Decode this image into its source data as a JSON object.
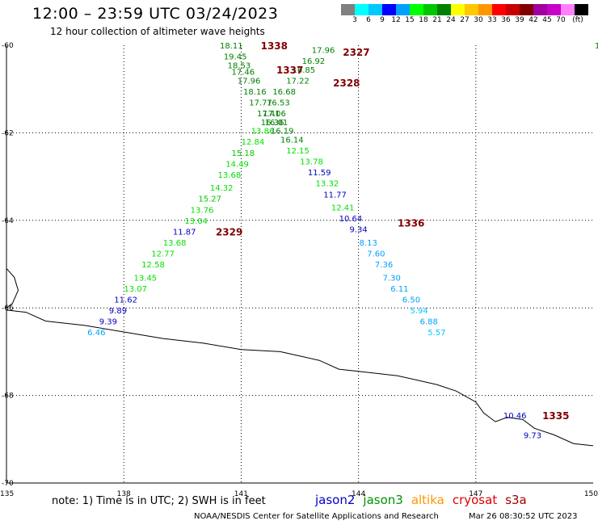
{
  "header": {
    "title": "12:00 – 23:59 UTC 03/24/2023",
    "subtitle": "12 hour collection of altimeter wave heights"
  },
  "colorbar": {
    "colors": [
      "#808080",
      "#00ffff",
      "#00c8ff",
      "#0000ff",
      "#00a0ff",
      "#00ff00",
      "#00c800",
      "#008000",
      "#ffff00",
      "#ffc800",
      "#ff9600",
      "#ff0000",
      "#c80000",
      "#800000",
      "#a000a0",
      "#c800c8",
      "#ff80ff",
      "#000000"
    ],
    "labels": [
      "3",
      "6",
      "9",
      "12",
      "15",
      "18",
      "21",
      "24",
      "27",
      "30",
      "33",
      "36",
      "39",
      "42",
      "45",
      "70",
      "(ft)"
    ]
  },
  "axes": {
    "y_labels": [
      "-60",
      "-62",
      "-64",
      "-66",
      "-68",
      "-70"
    ],
    "x_labels": [
      "135",
      "138",
      "141",
      "144",
      "147",
      "150"
    ]
  },
  "orbits": [
    {
      "label": "1338",
      "x": 141.5,
      "y": -60.0
    },
    {
      "label": "2327",
      "x": 143.6,
      "y": -60.15
    },
    {
      "label": "1337",
      "x": 141.9,
      "y": -60.55
    },
    {
      "label": "2328",
      "x": 143.35,
      "y": -60.85
    },
    {
      "label": "1336",
      "x": 145.0,
      "y": -64.05
    },
    {
      "label": "2329",
      "x": 140.35,
      "y": -64.25
    },
    {
      "label": "1335",
      "x": 148.7,
      "y": -68.45
    }
  ],
  "tracks": [
    {
      "name": "track_1338",
      "points": [
        {
          "x": 140.75,
          "y": -60.0,
          "v": "18.11",
          "c": "#008000"
        },
        {
          "x": 140.85,
          "y": -60.25,
          "v": "19.45",
          "c": "#008000"
        },
        {
          "x": 140.95,
          "y": -60.45,
          "v": "18.53",
          "c": "#008000"
        },
        {
          "x": 141.05,
          "y": -60.6,
          "v": "17.46",
          "c": "#008000"
        },
        {
          "x": 141.2,
          "y": -60.8,
          "v": "17.96",
          "c": "#008000"
        },
        {
          "x": 141.35,
          "y": -61.05,
          "v": "18.16",
          "c": "#008000"
        },
        {
          "x": 141.5,
          "y": -61.3,
          "v": "17.77",
          "c": "#008000"
        },
        {
          "x": 141.7,
          "y": -61.55,
          "v": "17.41",
          "c": "#008000"
        },
        {
          "x": 141.8,
          "y": -61.75,
          "v": "16.36",
          "c": "#008000"
        },
        {
          "x": 141.55,
          "y": -61.95,
          "v": "13.86",
          "c": "#00e000"
        },
        {
          "x": 141.3,
          "y": -62.2,
          "v": "12.84",
          "c": "#00e000"
        },
        {
          "x": 141.05,
          "y": -62.45,
          "v": "15.18",
          "c": "#00c800"
        },
        {
          "x": 140.9,
          "y": -62.7,
          "v": "14.49",
          "c": "#00e000"
        },
        {
          "x": 140.7,
          "y": -62.95,
          "v": "13.68",
          "c": "#00e000"
        },
        {
          "x": 140.5,
          "y": -63.25,
          "v": "14.32",
          "c": "#00e000"
        },
        {
          "x": 140.2,
          "y": -63.5,
          "v": "15.27",
          "c": "#00c800"
        },
        {
          "x": 140.0,
          "y": -63.75,
          "v": "13.76",
          "c": "#00e000"
        },
        {
          "x": 139.85,
          "y": -64.0,
          "v": "13.04",
          "c": "#00e000"
        },
        {
          "x": 139.55,
          "y": -64.25,
          "v": "11.87",
          "c": "#0000c0"
        },
        {
          "x": 139.3,
          "y": -64.5,
          "v": "13.68",
          "c": "#00e000"
        },
        {
          "x": 139.0,
          "y": -64.75,
          "v": "12.77",
          "c": "#00e000"
        },
        {
          "x": 138.75,
          "y": -65.0,
          "v": "12.58",
          "c": "#00e000"
        },
        {
          "x": 138.55,
          "y": -65.3,
          "v": "13.45",
          "c": "#00e000"
        },
        {
          "x": 138.3,
          "y": -65.55,
          "v": "13.07",
          "c": "#00e000"
        },
        {
          "x": 138.05,
          "y": -65.8,
          "v": "11.62",
          "c": "#0000c0"
        },
        {
          "x": 137.85,
          "y": -66.05,
          "v": "9.89",
          "c": "#0000c0"
        },
        {
          "x": 137.6,
          "y": -66.3,
          "v": "9.39",
          "c": "#0000c0"
        },
        {
          "x": 137.3,
          "y": -66.55,
          "v": "6.46",
          "c": "#00a0ff"
        }
      ]
    },
    {
      "name": "track_2327",
      "points": [
        {
          "x": 143.1,
          "y": -60.1,
          "v": "17.96",
          "c": "#008000"
        },
        {
          "x": 142.85,
          "y": -60.35,
          "v": "16.92",
          "c": "#008000"
        },
        {
          "x": 142.6,
          "y": -60.55,
          "v": "16.85",
          "c": "#008000"
        },
        {
          "x": 142.45,
          "y": -60.8,
          "v": "17.22",
          "c": "#008000"
        },
        {
          "x": 142.1,
          "y": -61.05,
          "v": "16.68",
          "c": "#008000"
        },
        {
          "x": 141.95,
          "y": -61.3,
          "v": "16.53",
          "c": "#008000"
        },
        {
          "x": 141.85,
          "y": -61.55,
          "v": "17.06",
          "c": "#008000"
        },
        {
          "x": 141.9,
          "y": -61.75,
          "v": "16.01",
          "c": "#008000"
        },
        {
          "x": 142.05,
          "y": -61.95,
          "v": "16.19",
          "c": "#008000"
        },
        {
          "x": 142.3,
          "y": -62.15,
          "v": "16.14",
          "c": "#008000"
        },
        {
          "x": 142.45,
          "y": -62.4,
          "v": "12.15",
          "c": "#00e000"
        },
        {
          "x": 142.8,
          "y": -62.65,
          "v": "13.78",
          "c": "#00e000"
        },
        {
          "x": 143.0,
          "y": -62.9,
          "v": "11.59",
          "c": "#0000c0"
        },
        {
          "x": 143.2,
          "y": -63.15,
          "v": "13.32",
          "c": "#00e000"
        },
        {
          "x": 143.4,
          "y": -63.4,
          "v": "11.77",
          "c": "#0000c0"
        },
        {
          "x": 143.6,
          "y": -63.7,
          "v": "12.41",
          "c": "#00e000"
        },
        {
          "x": 143.8,
          "y": -63.95,
          "v": "10.64",
          "c": "#0000c0"
        },
        {
          "x": 144.0,
          "y": -64.2,
          "v": "9.34",
          "c": "#0000c0"
        },
        {
          "x": 144.25,
          "y": -64.5,
          "v": "8.13",
          "c": "#00a0ff"
        },
        {
          "x": 144.45,
          "y": -64.75,
          "v": "7.60",
          "c": "#00a0ff"
        },
        {
          "x": 144.65,
          "y": -65.0,
          "v": "7.36",
          "c": "#00a0ff"
        },
        {
          "x": 144.85,
          "y": -65.3,
          "v": "7.30",
          "c": "#00a0ff"
        },
        {
          "x": 145.05,
          "y": -65.55,
          "v": "6.11",
          "c": "#00a0ff"
        },
        {
          "x": 145.35,
          "y": -65.8,
          "v": "6.50",
          "c": "#00a0ff"
        },
        {
          "x": 145.55,
          "y": -66.05,
          "v": "5.94",
          "c": "#00c8ff"
        },
        {
          "x": 145.8,
          "y": -66.3,
          "v": "6.88",
          "c": "#00a0ff"
        },
        {
          "x": 146.0,
          "y": -66.55,
          "v": "5.57",
          "c": "#00c8ff"
        }
      ]
    },
    {
      "name": "track_1335",
      "points": [
        {
          "x": 148.0,
          "y": -68.45,
          "v": "10.46",
          "c": "#0000c0"
        },
        {
          "x": 148.45,
          "y": -68.9,
          "v": "9.73",
          "c": "#0000c0"
        }
      ]
    },
    {
      "name": "edge_right",
      "points": [
        {
          "x": 150.0,
          "y": -60.0,
          "v": "1",
          "c": "#008000"
        }
      ]
    }
  ],
  "coastline": [
    [
      135,
      -66.05
    ],
    [
      135.5,
      -66.1
    ],
    [
      136,
      -66.3
    ],
    [
      137,
      -66.4
    ],
    [
      138,
      -66.55
    ],
    [
      139,
      -66.7
    ],
    [
      140,
      -66.8
    ],
    [
      141,
      -66.95
    ],
    [
      142,
      -67.0
    ],
    [
      142.5,
      -67.1
    ],
    [
      143,
      -67.2
    ],
    [
      143.5,
      -67.4
    ],
    [
      144,
      -67.45
    ],
    [
      144.5,
      -67.5
    ],
    [
      145,
      -67.55
    ],
    [
      145.5,
      -67.65
    ],
    [
      146,
      -67.75
    ],
    [
      146.5,
      -67.9
    ],
    [
      147,
      -68.15
    ],
    [
      147.2,
      -68.4
    ],
    [
      147.5,
      -68.6
    ],
    [
      147.8,
      -68.5
    ],
    [
      148.2,
      -68.55
    ],
    [
      148.5,
      -68.75
    ],
    [
      149,
      -68.9
    ],
    [
      149.5,
      -69.1
    ],
    [
      150,
      -69.15
    ]
  ],
  "coast_left": [
    [
      135,
      -65.1
    ],
    [
      135.2,
      -65.3
    ],
    [
      135.3,
      -65.6
    ],
    [
      135.15,
      -65.9
    ],
    [
      135,
      -66.0
    ]
  ],
  "footer": {
    "note": "note:  1) Time is in UTC;  2) SWH is in feet",
    "legend": [
      {
        "label": "jason2",
        "color": "#0000c8"
      },
      {
        "label": "jason3",
        "color": "#009000"
      },
      {
        "label": "altika",
        "color": "#ff9600"
      },
      {
        "label": "cryosat",
        "color": "#e00000"
      },
      {
        "label": "s3a",
        "color": "#a00000"
      }
    ],
    "credit": "NOAA/NESDIS Center for Satellite Applications and Research",
    "timestamp": "Mar 26 08:30:52 UTC 2023"
  }
}
